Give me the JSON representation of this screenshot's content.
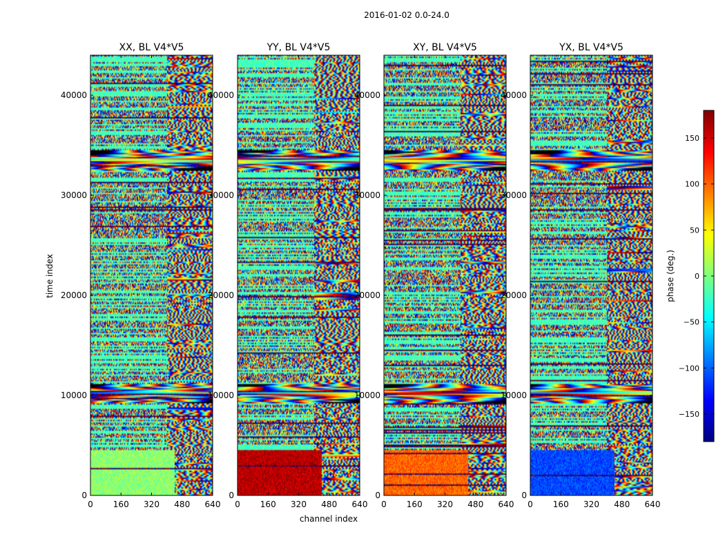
{
  "chart_data": {
    "type": "heatmap",
    "title": "2016-01-02 0.0-24.0",
    "xlabel": "channel index",
    "ylabel": "time index",
    "xlim": [
      0,
      640
    ],
    "ylim": [
      0,
      44000
    ],
    "xticks": [
      0,
      160,
      320,
      480,
      640
    ],
    "yticks": [
      0,
      10000,
      20000,
      30000,
      40000
    ],
    "panels": [
      {
        "name": "XX, BL V4*V5",
        "seed": 11
      },
      {
        "name": "YY, BL V4*V5",
        "seed": 23
      },
      {
        "name": "XY, BL V4*V5",
        "seed": 37
      },
      {
        "name": "YX, BL V4*V5",
        "seed": 51
      }
    ],
    "colorbar": {
      "label": "phase (deg.)",
      "range": [
        -180,
        180
      ],
      "ticks": [
        -150,
        -100,
        -50,
        0,
        50,
        100,
        150
      ],
      "tick_labels": [
        "−150",
        "−100",
        "−50",
        "0",
        "50",
        "100",
        "150"
      ],
      "colormap": "jet"
    },
    "fringe_bands": [
      {
        "time_center": 33500,
        "time_halfwidth": 1000
      },
      {
        "time_center": 10200,
        "time_halfwidth": 1000
      }
    ],
    "low_band_phase": {
      "XX": 5,
      "YY": 160,
      "XY": 100,
      "YX": -110
    }
  }
}
